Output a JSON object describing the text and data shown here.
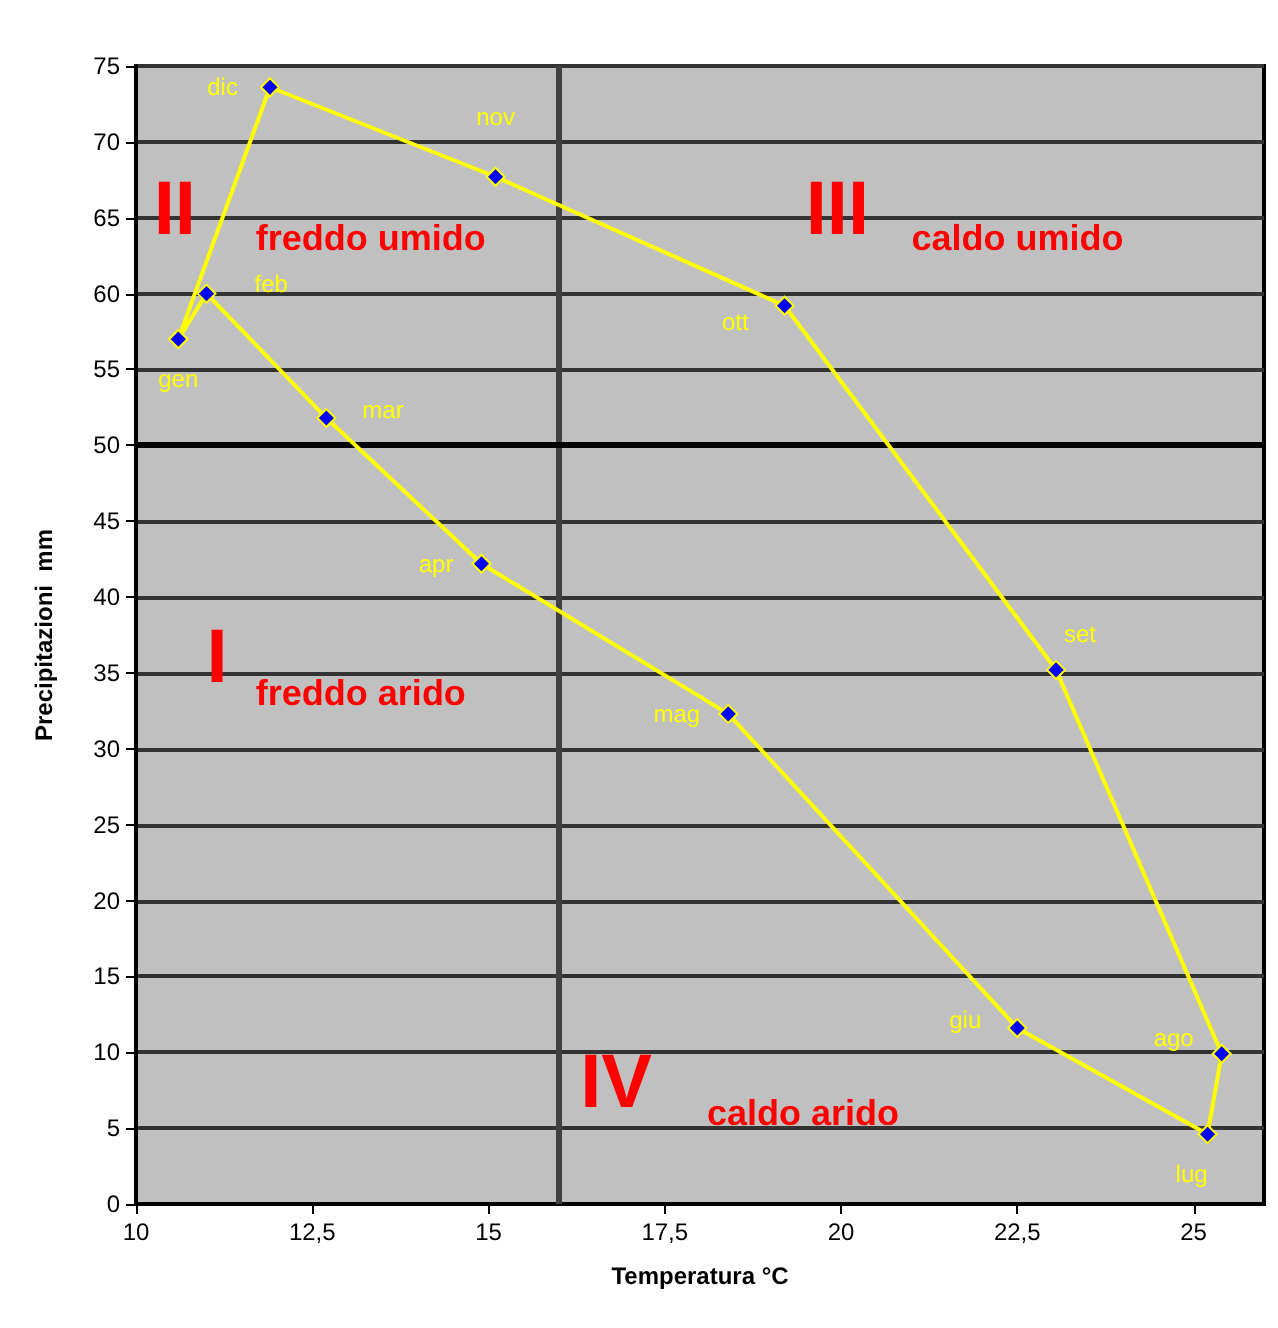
{
  "chart_data": {
    "type": "scatter",
    "xlabel": "Temperatura °C",
    "ylabel": "Precipitazioni  mm",
    "xlim": [
      10,
      26
    ],
    "xticks": [
      10,
      {
        "value": 12.5,
        "label": "12,5"
      },
      15,
      {
        "value": 17.5,
        "label": "17,5"
      },
      20,
      {
        "value": 22.5,
        "label": "22,5"
      },
      25
    ],
    "ylim": [
      0,
      75
    ],
    "yticks": [
      0,
      5,
      10,
      15,
      20,
      25,
      30,
      35,
      40,
      45,
      50,
      55,
      60,
      65,
      70,
      75
    ],
    "grid": "y",
    "marker": "diamond",
    "line_style": "solid",
    "series": [
      {
        "color": "#ffff00",
        "x": [
          10.6,
          11.0,
          12.7,
          14.9,
          18.4,
          22.5,
          25.2,
          25.4,
          23.05,
          19.2,
          15.1,
          11.9,
          10.6
        ],
        "values": [
          57,
          60,
          51.8,
          42.2,
          32.3,
          11.6,
          4.6,
          9.9,
          35.2,
          59.2,
          67.7,
          73.6,
          57
        ],
        "value_labels": [
          "gen",
          "feb",
          "mar",
          "apr",
          "mag",
          "giu",
          "lug",
          "ago",
          "set",
          "ott",
          "nov",
          "dic",
          null
        ]
      }
    ],
    "ref_lines": [
      {
        "axis": "x",
        "value": 16,
        "color": "#404040"
      },
      {
        "axis": "y",
        "value": 50,
        "color": "#000000"
      }
    ],
    "annotations": [
      "I",
      "freddo arido",
      "II",
      "freddo umido",
      "III",
      "caldo umido",
      "IV",
      "caldo arido"
    ]
  }
}
